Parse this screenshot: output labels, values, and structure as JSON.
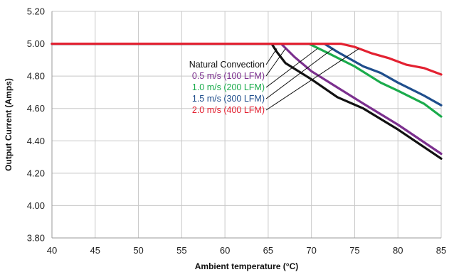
{
  "chart_data": {
    "type": "line",
    "title": "",
    "xlabel": "Ambient temperature (°C)",
    "ylabel": "Output Current (Amps)",
    "xlim": [
      40,
      85
    ],
    "ylim": [
      3.8,
      5.2
    ],
    "x_ticks": [
      "40",
      "45",
      "50",
      "55",
      "60",
      "65",
      "70",
      "75",
      "80",
      "85"
    ],
    "y_ticks": [
      "3.80",
      "4.00",
      "4.20",
      "4.40",
      "4.60",
      "4.80",
      "5.00",
      "5.20"
    ],
    "x_tick_values": [
      40,
      45,
      50,
      55,
      60,
      65,
      70,
      75,
      80,
      85
    ],
    "y_tick_values": [
      3.8,
      4.0,
      4.2,
      4.4,
      4.6,
      4.8,
      5.0,
      5.2
    ],
    "grid": true,
    "legend": "annotations with leader lines",
    "series": [
      {
        "name": "Natural Convection",
        "color": "#111111",
        "points": [
          [
            40,
            5.0
          ],
          [
            65.4,
            5.0
          ],
          [
            66,
            4.95
          ],
          [
            67,
            4.88
          ],
          [
            70,
            4.78
          ],
          [
            73,
            4.67
          ],
          [
            76,
            4.6
          ],
          [
            80,
            4.47
          ],
          [
            85,
            4.29
          ]
        ]
      },
      {
        "name": "0.5 m/s (100 LFM)",
        "color": "#7b2f8e",
        "points": [
          [
            40,
            5.0
          ],
          [
            66.5,
            5.0
          ],
          [
            68,
            4.92
          ],
          [
            70,
            4.83
          ],
          [
            73,
            4.73
          ],
          [
            76,
            4.63
          ],
          [
            80,
            4.5
          ],
          [
            85,
            4.32
          ]
        ]
      },
      {
        "name": "1.0 m/s (200 LFM)",
        "color": "#1aab4b",
        "points": [
          [
            40,
            5.0
          ],
          [
            69.7,
            5.0
          ],
          [
            72,
            4.94
          ],
          [
            75,
            4.86
          ],
          [
            78,
            4.76
          ],
          [
            80,
            4.71
          ],
          [
            83,
            4.63
          ],
          [
            85,
            4.55
          ]
        ]
      },
      {
        "name": "1.5 m/s (300 LFM)",
        "color": "#1f4e8c",
        "points": [
          [
            40,
            5.0
          ],
          [
            71.5,
            5.0
          ],
          [
            73,
            4.95
          ],
          [
            76,
            4.86
          ],
          [
            78,
            4.82
          ],
          [
            80,
            4.76
          ],
          [
            83,
            4.68
          ],
          [
            85,
            4.62
          ]
        ]
      },
      {
        "name": "2.0 m/s (400 LFM)",
        "color": "#e32131",
        "points": [
          [
            40,
            5.0
          ],
          [
            73.4,
            5.0
          ],
          [
            75,
            4.98
          ],
          [
            77,
            4.94
          ],
          [
            79,
            4.91
          ],
          [
            81,
            4.87
          ],
          [
            83,
            4.85
          ],
          [
            85,
            4.81
          ]
        ]
      }
    ],
    "annotations": [
      {
        "text": "Natural Convection",
        "color": "#111111",
        "target": [
          66.0,
          4.97
        ]
      },
      {
        "text": "0.5 m/s (100 LFM)",
        "color": "#7b2f8e",
        "target": [
          67.0,
          4.97
        ]
      },
      {
        "text": "1.0 m/s (200 LFM)",
        "color": "#1aab4b",
        "target": [
          70.7,
          4.97
        ]
      },
      {
        "text": "1.5 m/s (300 LFM)",
        "color": "#1f4e8c",
        "target": [
          72.5,
          4.97
        ]
      },
      {
        "text": "2.0 m/s (400 LFM)",
        "color": "#e32131",
        "target": [
          75.5,
          4.97
        ]
      }
    ]
  }
}
